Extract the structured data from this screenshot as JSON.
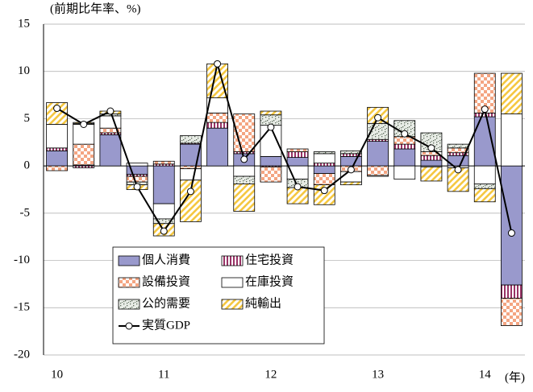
{
  "chart_data": {
    "type": "bar",
    "subtitle": "(前期比年率、%)",
    "x_unit": "(年)",
    "categories": [
      "10",
      null,
      null,
      null,
      "11",
      null,
      null,
      null,
      "12",
      null,
      null,
      null,
      "13",
      null,
      null,
      null,
      "14",
      null
    ],
    "ylim": [
      -20,
      15
    ],
    "yticks": [
      -20,
      -15,
      -10,
      -5,
      0,
      5,
      10,
      15
    ],
    "grid": true,
    "stacked": true,
    "series": [
      {
        "name": "個人消費",
        "color": "#9999cc",
        "values": [
          1.6,
          0.1,
          3.3,
          -0.9,
          -4.0,
          2.3,
          4.0,
          1.3,
          1.0,
          0.9,
          -0.8,
          1.0,
          2.6,
          1.8,
          0.6,
          1.1,
          5.2,
          -12.6
        ]
      },
      {
        "name": "住宅投資",
        "color": "#993366",
        "values": [
          0.3,
          -0.2,
          0.2,
          -0.2,
          0.2,
          0.1,
          0.6,
          0.2,
          -0.1,
          0.6,
          0.3,
          0.3,
          0.2,
          0.5,
          0.5,
          0.3,
          0.4,
          -1.4
        ]
      },
      {
        "name": "設備投資",
        "color": "#f4a582",
        "values": [
          -0.5,
          2.2,
          0.5,
          -0.6,
          0.3,
          -0.3,
          1.0,
          4.0,
          -1.6,
          0.3,
          -1.2,
          -0.6,
          -1.0,
          0.8,
          0.4,
          0.5,
          4.2,
          -2.9
        ]
      },
      {
        "name": "在庫投資",
        "color": "#ffffff",
        "values": [
          2.5,
          2.1,
          1.3,
          0.3,
          -1.6,
          -1.2,
          1.6,
          -1.1,
          3.3,
          -1.4,
          1.0,
          -1.1,
          -0.1,
          -1.4,
          -0.1,
          -0.2,
          -1.9,
          5.5
        ]
      },
      {
        "name": "公的需要",
        "color": "#a9b8a8",
        "values": [
          0,
          0.1,
          0.2,
          -0.3,
          -0.5,
          0.8,
          0,
          -0.8,
          1.1,
          -0.9,
          0.2,
          0.3,
          1.7,
          1.7,
          2.0,
          0.4,
          -0.5,
          0
        ]
      },
      {
        "name": "純輸出",
        "color": "#f5c842",
        "values": [
          2.3,
          0.1,
          0.3,
          -0.5,
          -1.3,
          -4.4,
          3.6,
          -2.9,
          0.4,
          -1.7,
          -2.1,
          -0.3,
          1.7,
          0.0,
          -1.5,
          -2.5,
          -1.4,
          4.3
        ]
      },
      {
        "name": "実質GDP",
        "type": "line",
        "color": "#000000",
        "values": [
          6.1,
          4.4,
          5.8,
          -2.2,
          -6.9,
          -2.7,
          10.8,
          0.7,
          4.1,
          -2.2,
          -2.6,
          -0.4,
          5.1,
          3.4,
          1.9,
          -0.4,
          6.0,
          -7.1
        ]
      }
    ]
  }
}
